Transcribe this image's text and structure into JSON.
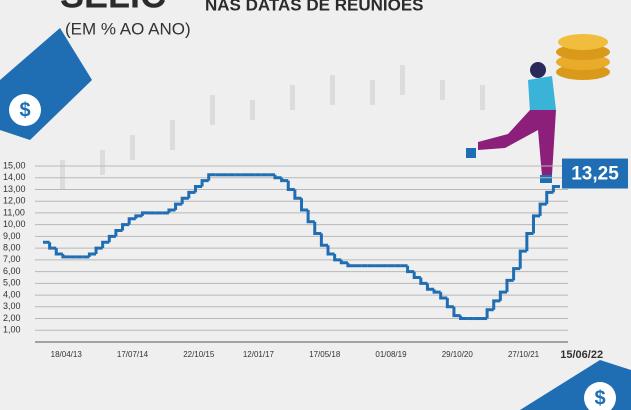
{
  "chart_data": {
    "type": "step",
    "title": "SELIC",
    "title_suffix": "NAS DATAS DE REUNIÕES",
    "subtitle": "(EM % AO ANO)",
    "categories": [
      null,
      null,
      null,
      "18/04/13",
      null,
      null,
      null,
      null,
      null,
      null,
      null,
      null,
      null,
      "17/07/14",
      null,
      null,
      null,
      null,
      null,
      null,
      null,
      null,
      null,
      "22/10/15",
      null,
      null,
      null,
      null,
      null,
      null,
      null,
      null,
      "12/01/17",
      null,
      null,
      null,
      null,
      null,
      null,
      null,
      null,
      null,
      "17/05/18",
      null,
      null,
      null,
      null,
      null,
      null,
      null,
      null,
      null,
      "01/08/19",
      null,
      null,
      null,
      null,
      null,
      null,
      null,
      null,
      null,
      "29/10/20",
      null,
      null,
      null,
      null,
      null,
      null,
      null,
      null,
      null,
      "27/10/21",
      null,
      null,
      null,
      null,
      "15/06/22"
    ],
    "series": [
      {
        "name": null,
        "color": "#1f6db3",
        "values": [
          8.5,
          8.0,
          7.5,
          7.25,
          7.25,
          7.25,
          7.25,
          7.5,
          8.0,
          8.5,
          9.0,
          9.5,
          10.0,
          10.5,
          10.75,
          11.0,
          11.0,
          11.0,
          11.0,
          11.25,
          11.75,
          12.25,
          12.75,
          13.25,
          13.75,
          14.25,
          14.25,
          14.25,
          14.25,
          14.25,
          14.25,
          14.25,
          14.25,
          14.25,
          14.25,
          14.0,
          13.75,
          13.0,
          12.25,
          11.25,
          10.25,
          9.25,
          8.25,
          7.5,
          7.0,
          6.75,
          6.5,
          6.5,
          6.5,
          6.5,
          6.5,
          6.5,
          6.5,
          6.5,
          6.5,
          6.0,
          5.5,
          5.0,
          4.5,
          4.25,
          3.75,
          3.0,
          2.25,
          2.0,
          2.0,
          2.0,
          2.0,
          2.75,
          3.5,
          4.25,
          5.25,
          6.25,
          7.75,
          9.25,
          10.75,
          11.75,
          12.75,
          13.25
        ],
        "value_labels": [
          null,
          null,
          null,
          null,
          null,
          null,
          null,
          null,
          null,
          null,
          null,
          null,
          null,
          null,
          null,
          null,
          null,
          null,
          null,
          null,
          null,
          null,
          null,
          null,
          null,
          null,
          null,
          null,
          null,
          null,
          null,
          null,
          null,
          null,
          null,
          null,
          null,
          null,
          null,
          null,
          null,
          null,
          null,
          null,
          null,
          null,
          null,
          null,
          null,
          null,
          null,
          null,
          null,
          null,
          null,
          null,
          null,
          null,
          null,
          null,
          null,
          null,
          null,
          null,
          null,
          null,
          null,
          null,
          null,
          null,
          null,
          null,
          null,
          null,
          null,
          null,
          null,
          "13,25"
        ]
      }
    ],
    "ylim": [
      0,
      15
    ],
    "yticks": [
      {
        "value": 1,
        "label": "1,00"
      },
      {
        "value": 2,
        "label": "2,00"
      },
      {
        "value": 3,
        "label": "3,00"
      },
      {
        "value": 4,
        "label": "4,00"
      },
      {
        "value": 5,
        "label": "5,00"
      },
      {
        "value": 6,
        "label": "6,00"
      },
      {
        "value": 7,
        "label": "7,00"
      },
      {
        "value": 8,
        "label": "8,00"
      },
      {
        "value": 9,
        "label": "9,00"
      },
      {
        "value": 10,
        "label": "10,00"
      },
      {
        "value": 11,
        "label": "11,00"
      },
      {
        "value": 12,
        "label": "12,00"
      },
      {
        "value": 13,
        "label": "13,00"
      },
      {
        "value": 14,
        "label": "14,00"
      },
      {
        "value": 15,
        "label": "15,00"
      }
    ],
    "grid": true
  }
}
